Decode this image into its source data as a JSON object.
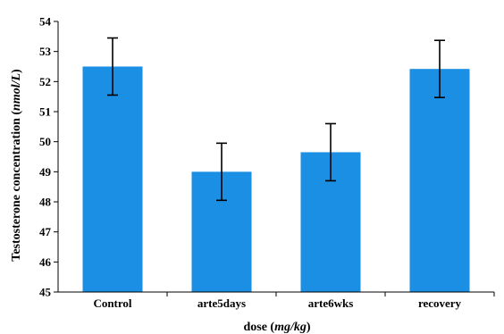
{
  "chart_data": {
    "type": "bar",
    "categories": [
      "Control",
      "arte5days",
      "arte6wks",
      "recovery"
    ],
    "values": [
      52.5,
      49.0,
      49.65,
      52.42
    ],
    "errors": [
      0.95,
      0.95,
      0.95,
      0.95
    ],
    "ylim": [
      45,
      54
    ],
    "yticks": [
      45,
      46,
      47,
      48,
      49,
      50,
      51,
      52,
      53,
      54
    ],
    "xlabel": {
      "main": "dose (",
      "unit": "mg/kg",
      "close": ")"
    },
    "ylabel": {
      "main": "Testosterone concentration (",
      "unit": "nmol/L",
      "close": ")"
    },
    "bar_color": "#1B8FE3",
    "grid": false,
    "legend": false
  }
}
